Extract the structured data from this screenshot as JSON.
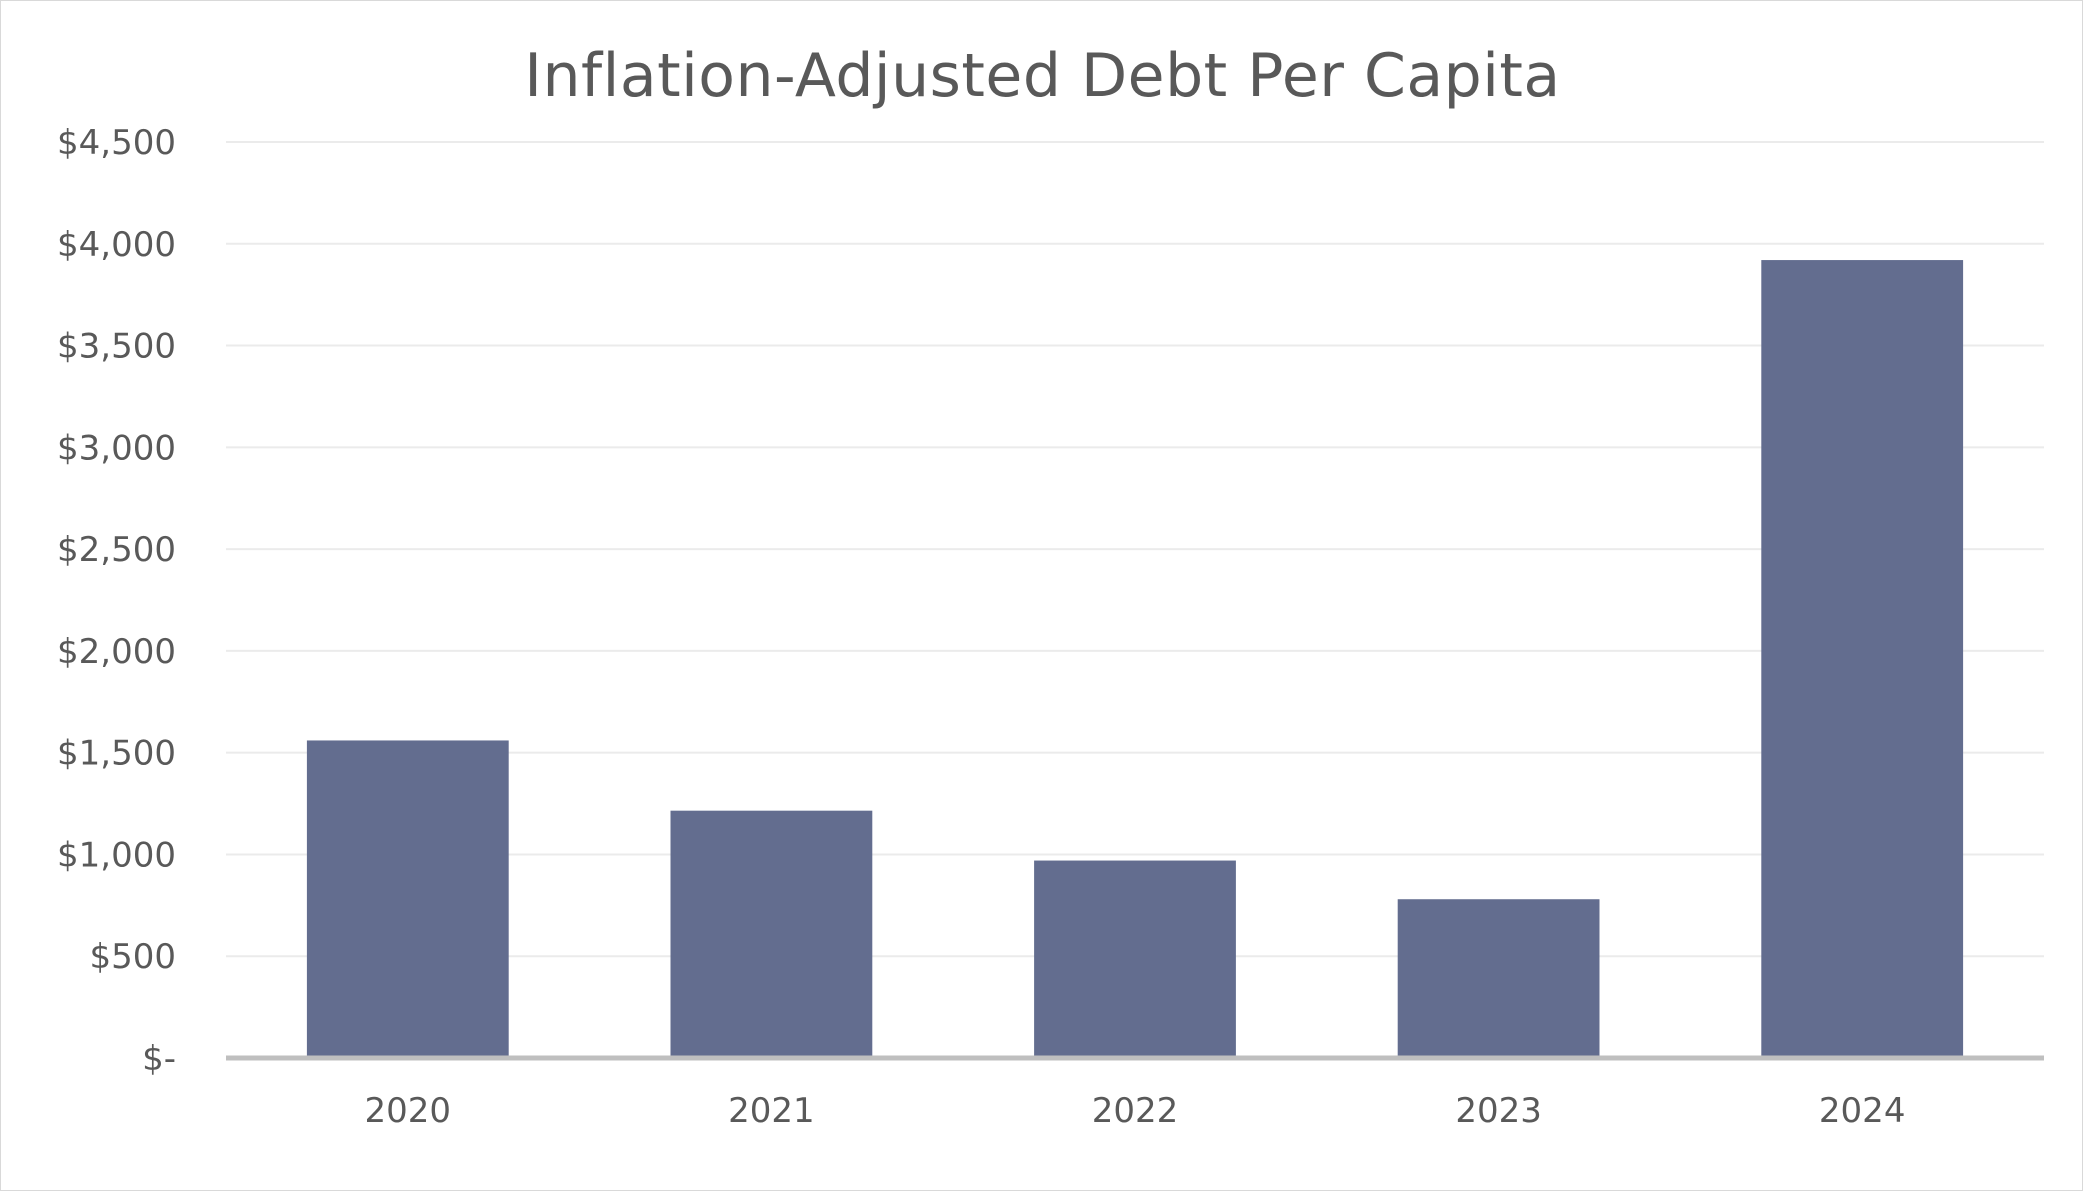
{
  "chart_data": {
    "type": "bar",
    "title": "Inflation-Adjusted Debt Per Capita",
    "categories": [
      "2020",
      "2021",
      "2022",
      "2023",
      "2024"
    ],
    "values": [
      1560,
      1215,
      970,
      780,
      3920
    ],
    "xlabel": "",
    "ylabel": "",
    "ylim": [
      0,
      4500
    ],
    "yticks": [
      0,
      500,
      1000,
      1500,
      2000,
      2500,
      3000,
      3500,
      4000,
      4500
    ],
    "ytick_labels": [
      "$-",
      "$500",
      "$1,000",
      "$1,500",
      "$2,000",
      "$2,500",
      "$3,000",
      "$3,500",
      "$4,000",
      "$4,500"
    ],
    "grid": true,
    "legend": "none",
    "colors": {
      "bar": "#636d8f",
      "grid": "#ebebeb",
      "axis": "#bfbfbf",
      "text": "#595959"
    }
  }
}
